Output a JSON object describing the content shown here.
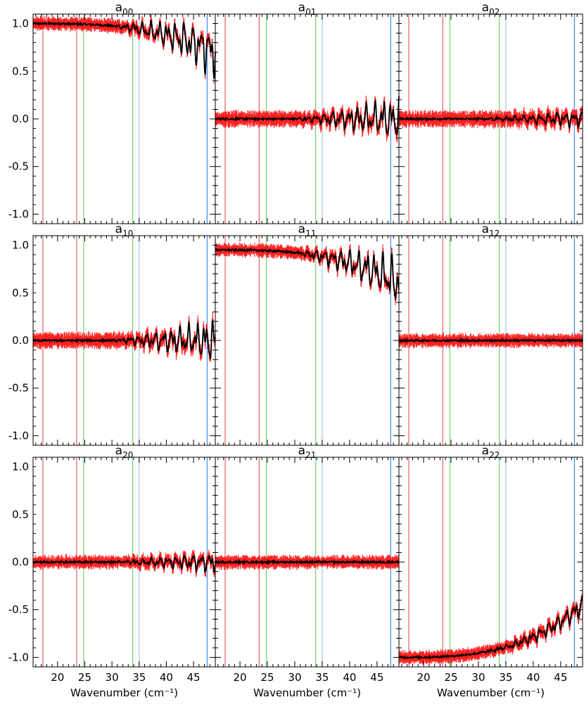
{
  "chart_data": {
    "type": "line",
    "layout": "3x3 grid of panels sharing x and y axes",
    "xlim": [
      15.5,
      49.0
    ],
    "ylim": [
      -1.1,
      1.1
    ],
    "x_ticks": [
      20,
      25,
      30,
      35,
      40,
      45
    ],
    "y_ticks": [
      1.0,
      0.5,
      0.0,
      -0.5,
      -1.0
    ],
    "xlabel": "Wavenumber (cm⁻¹)",
    "reference_lines": [
      {
        "x": 17.3,
        "color": "#e06060"
      },
      {
        "x": 23.5,
        "color": "#e06060"
      },
      {
        "x": 24.8,
        "color": "#6bd86b"
      },
      {
        "x": 33.8,
        "color": "#6bd86b"
      },
      {
        "x": 35.0,
        "color": "#9cc8ee"
      },
      {
        "x": 47.5,
        "color": "#3c8ce8"
      }
    ],
    "colors": {
      "mean": "#000000",
      "band": "#ff2020"
    },
    "panels": [
      {
        "name": "a",
        "sub": "00",
        "base": 1.0,
        "drift": -0.3,
        "dip": -0.3,
        "band": 0.05,
        "sign": -1
      },
      {
        "name": "a",
        "sub": "01",
        "base": 0.0,
        "drift": 0.0,
        "dip": 0.25,
        "band": 0.06,
        "sign": 1
      },
      {
        "name": "a",
        "sub": "02",
        "base": 0.0,
        "drift": 0.0,
        "dip": 0.1,
        "band": 0.06,
        "sign": 1
      },
      {
        "name": "a",
        "sub": "10",
        "base": 0.0,
        "drift": 0.0,
        "dip": 0.25,
        "band": 0.06,
        "sign": 1
      },
      {
        "name": "a",
        "sub": "11",
        "base": 0.95,
        "drift": -0.35,
        "dip": 0.3,
        "band": 0.05,
        "sign": -1
      },
      {
        "name": "a",
        "sub": "12",
        "base": 0.0,
        "drift": 0.0,
        "dip": 0.0,
        "band": 0.05,
        "sign": 1
      },
      {
        "name": "a",
        "sub": "20",
        "base": 0.0,
        "drift": 0.0,
        "dip": 0.12,
        "band": 0.05,
        "sign": 1
      },
      {
        "name": "a",
        "sub": "21",
        "base": 0.0,
        "drift": 0.0,
        "dip": 0.0,
        "band": 0.05,
        "sign": 1
      },
      {
        "name": "a",
        "sub": "22",
        "base": -1.0,
        "drift": 0.55,
        "dip": 0.12,
        "band": 0.05,
        "sign": 1
      }
    ]
  }
}
